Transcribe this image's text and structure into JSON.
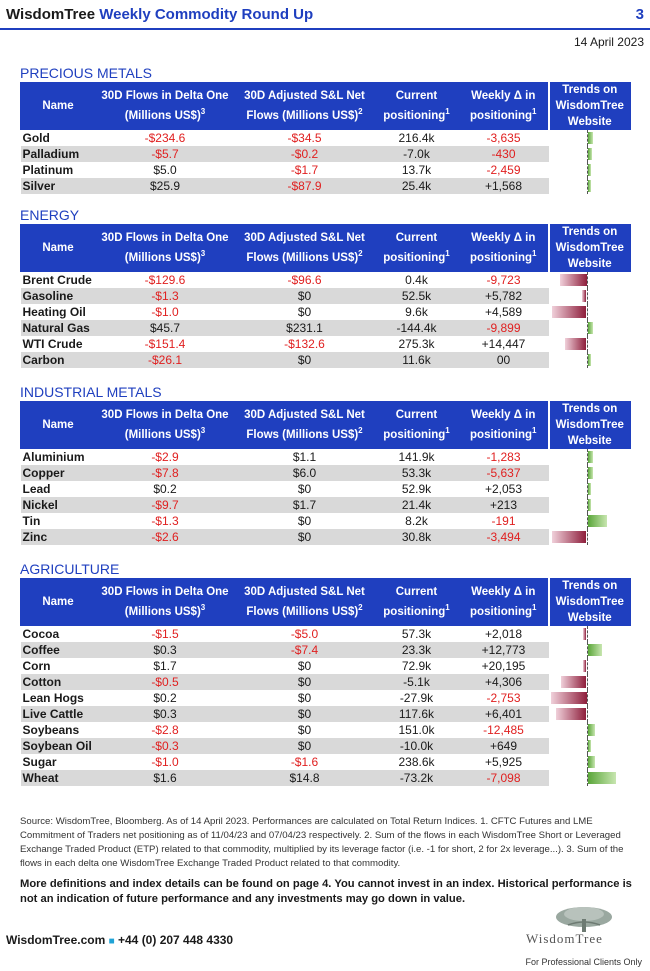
{
  "header": {
    "brand": "WisdomTree",
    "title": "Weekly Commodity Round Up",
    "page": "3",
    "date": "14 April 2023"
  },
  "columns": {
    "name": "Name",
    "delta_one": "30D Flows in Delta One (Millions US$)",
    "delta_one_sup": "3",
    "sl_net": "30D Adjusted S&L Net Flows (Millions US$)",
    "sl_net_sup": "2",
    "positioning": "Current positioning",
    "positioning_sup": "1",
    "weekly": "Weekly Δ in positioning",
    "weekly_sup": "1",
    "trends": "Trends on WisdomTree Website"
  },
  "sections": [
    {
      "title": "PRECIOUS METALS",
      "rows": [
        {
          "name": "Gold",
          "delta": "-$234.6",
          "sl": "-$34.5",
          "pos": "216.4k",
          "weekly": "-3,635",
          "trend": 0.15
        },
        {
          "name": "Palladium",
          "delta": "-$5.7",
          "sl": "-$0.2",
          "pos": "-7.0k",
          "weekly": "-430",
          "trend": 0.12
        },
        {
          "name": "Platinum",
          "delta": "$5.0",
          "sl": "-$1.7",
          "pos": "13.7k",
          "weekly": "-2,459",
          "trend": 0.05
        },
        {
          "name": "Silver",
          "delta": "$25.9",
          "sl": "-$87.9",
          "pos": "25.4k",
          "weekly": "+1,568",
          "trend": 0.1
        }
      ]
    },
    {
      "title": "ENERGY",
      "rows": [
        {
          "name": "Brent Crude",
          "delta": "-$129.6",
          "sl": "-$96.6",
          "pos": "0.4k",
          "weekly": "-9,723",
          "trend": -0.75
        },
        {
          "name": "Gasoline",
          "delta": "-$1.3",
          "sl": "$0",
          "pos": "52.5k",
          "weekly": "+5,782",
          "trend": -0.12
        },
        {
          "name": "Heating Oil",
          "delta": "-$1.0",
          "sl": "$0",
          "pos": "9.6k",
          "weekly": "+4,589",
          "trend": -0.95
        },
        {
          "name": "Natural Gas",
          "delta": "$45.7",
          "sl": "$231.1",
          "pos": "-144.4k",
          "weekly": "-9,899",
          "trend": 0.15
        },
        {
          "name": "WTI Crude",
          "delta": "-$151.4",
          "sl": "-$132.6",
          "pos": "275.3k",
          "weekly": "+14,447",
          "trend": -0.6
        },
        {
          "name": "Carbon",
          "delta": "-$26.1",
          "sl": "$0",
          "pos": "11.6k",
          "weekly": "00",
          "trend": 0.1
        }
      ]
    },
    {
      "title": "INDUSTRIAL METALS",
      "rows": [
        {
          "name": "Aluminium",
          "delta": "-$2.9",
          "sl": "$1.1",
          "pos": "141.9k",
          "weekly": "-1,283",
          "trend": 0.15
        },
        {
          "name": "Copper",
          "delta": "-$7.8",
          "sl": "$6.0",
          "pos": "53.3k",
          "weekly": "-5,637",
          "trend": 0.15
        },
        {
          "name": "Lead",
          "delta": "$0.2",
          "sl": "$0",
          "pos": "52.9k",
          "weekly": "+2,053",
          "trend": 0.03
        },
        {
          "name": "Nickel",
          "delta": "-$9.7",
          "sl": "$1.7",
          "pos": "21.4k",
          "weekly": "+213",
          "trend": 0.03
        },
        {
          "name": "Tin",
          "delta": "-$1.3",
          "sl": "$0",
          "pos": "8.2k",
          "weekly": "-191",
          "trend": 0.55
        },
        {
          "name": "Zinc",
          "delta": "-$2.6",
          "sl": "$0",
          "pos": "30.8k",
          "weekly": "-3,494",
          "trend": -0.95
        }
      ]
    },
    {
      "title": "AGRICULTURE",
      "rows": [
        {
          "name": "Cocoa",
          "delta": "-$1.5",
          "sl": "-$5.0",
          "pos": "57.3k",
          "weekly": "+2,018",
          "trend": -0.1
        },
        {
          "name": "Coffee",
          "delta": "$0.3",
          "sl": "-$7.4",
          "pos": "23.3k",
          "weekly": "+12,773",
          "trend": 0.4
        },
        {
          "name": "Corn",
          "delta": "$1.7",
          "sl": "$0",
          "pos": "72.9k",
          "weekly": "+20,195",
          "trend": -0.1
        },
        {
          "name": "Cotton",
          "delta": "-$0.5",
          "sl": "$0",
          "pos": "-5.1k",
          "weekly": "+4,306",
          "trend": -0.7
        },
        {
          "name": "Lean Hogs",
          "delta": "$0.2",
          "sl": "$0",
          "pos": "-27.9k",
          "weekly": "-2,753",
          "trend": -1.0
        },
        {
          "name": "Live Cattle",
          "delta": "$0.3",
          "sl": "$0",
          "pos": "117.6k",
          "weekly": "+6,401",
          "trend": -0.85
        },
        {
          "name": "Soybeans",
          "delta": "-$2.8",
          "sl": "$0",
          "pos": "151.0k",
          "weekly": "-12,485",
          "trend": 0.2
        },
        {
          "name": "Soybean Oil",
          "delta": "-$0.3",
          "sl": "$0",
          "pos": "-10.0k",
          "weekly": "+649",
          "trend": 0.05
        },
        {
          "name": "Sugar",
          "delta": "-$1.0",
          "sl": "-$1.6",
          "pos": "238.6k",
          "weekly": "+5,925",
          "trend": 0.2
        },
        {
          "name": "Wheat",
          "delta": "$1.6",
          "sl": "$14.8",
          "pos": "-73.2k",
          "weekly": "-7,098",
          "trend": 0.8
        }
      ]
    }
  ],
  "footnote": "Source: WisdomTree, Bloomberg. As of 14 April 2023. Performances are calculated on Total Return Indices. 1. CFTC Futures and LME Commitment of Traders net positioning as of 11/04/23 and 07/04/23 respectively. 2. Sum of the flows in each WisdomTree Short or Leveraged Exchange Traded Product (ETP) related to that commodity, multiplied by its leverage factor (i.e. -1 for short, 2 for 2x leverage...). 3. Sum of the flows in each delta one WisdomTree Exchange Traded Product related to that commodity.",
  "disclaimer": "More definitions and index details can be found on page 4. You cannot invest in an index. Historical performance is not an indication of future performance and any investments may go down in value.",
  "footer": {
    "website": "WisdomTree.com",
    "phone": "+44 (0) 207 448 4330",
    "logo_text": "WisdomTree",
    "audience": "For Professional Clients Only"
  },
  "colors": {
    "accent": "#1f3fbf",
    "negative": "#e02020",
    "row_shade": "#d9d9d9",
    "bar_positive": "#5aa63a",
    "bar_negative": "#8e1f3c"
  }
}
